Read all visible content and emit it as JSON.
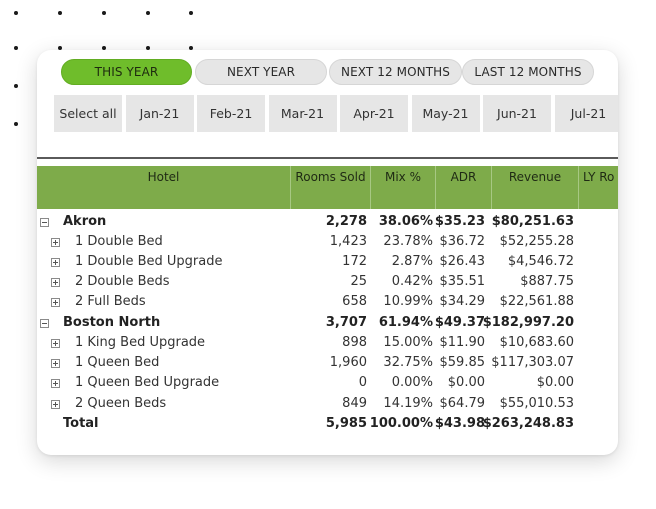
{
  "period_filters": [
    {
      "label": "THIS YEAR",
      "active": true
    },
    {
      "label": "NEXT YEAR",
      "active": false
    },
    {
      "label": "NEXT 12 MONTHS",
      "active": false
    },
    {
      "label": "LAST 12 MONTHS",
      "active": false
    }
  ],
  "month_filters": [
    "Select all",
    "Jan-21",
    "Feb-21",
    "Mar-21",
    "Apr-21",
    "May-21",
    "Jun-21",
    "Jul-21"
  ],
  "table": {
    "columns": [
      "Hotel",
      "Rooms Sold",
      "Mix %",
      "ADR",
      "Revenue",
      "LY Ro"
    ],
    "rows": [
      {
        "kind": "group",
        "label": "Akron",
        "rooms": "2,278",
        "mix": "38.06%",
        "adr": "$35.23",
        "revenue": "$80,251.63"
      },
      {
        "kind": "sub",
        "label": "1 Double Bed",
        "rooms": "1,423",
        "mix": "23.78%",
        "adr": "$36.72",
        "revenue": "$52,255.28"
      },
      {
        "kind": "sub",
        "label": "1 Double Bed Upgrade",
        "rooms": "172",
        "mix": "2.87%",
        "adr": "$26.43",
        "revenue": "$4,546.72"
      },
      {
        "kind": "sub",
        "label": "2 Double Beds",
        "rooms": "25",
        "mix": "0.42%",
        "adr": "$35.51",
        "revenue": "$887.75"
      },
      {
        "kind": "sub",
        "label": "2 Full Beds",
        "rooms": "658",
        "mix": "10.99%",
        "adr": "$34.29",
        "revenue": "$22,561.88"
      },
      {
        "kind": "group",
        "label": "Boston North",
        "rooms": "3,707",
        "mix": "61.94%",
        "adr": "$49.37",
        "revenue": "$182,997.20"
      },
      {
        "kind": "sub",
        "label": "1 King Bed Upgrade",
        "rooms": "898",
        "mix": "15.00%",
        "adr": "$11.90",
        "revenue": "$10,683.60"
      },
      {
        "kind": "sub",
        "label": "1 Queen Bed",
        "rooms": "1,960",
        "mix": "32.75%",
        "adr": "$59.85",
        "revenue": "$117,303.07"
      },
      {
        "kind": "sub",
        "label": "1 Queen Bed Upgrade",
        "rooms": "0",
        "mix": "0.00%",
        "adr": "$0.00",
        "revenue": "$0.00"
      },
      {
        "kind": "sub",
        "label": "2 Queen Beds",
        "rooms": "849",
        "mix": "14.19%",
        "adr": "$64.79",
        "revenue": "$55,010.53"
      },
      {
        "kind": "total",
        "label": "Total",
        "rooms": "5,985",
        "mix": "100.00%",
        "adr": "$43.98",
        "revenue": "$263,248.83"
      }
    ]
  },
  "colors": {
    "active_pill": "#6fbd2b",
    "header_bg": "#7eab4a",
    "pill_bg": "#e6e6e6"
  }
}
